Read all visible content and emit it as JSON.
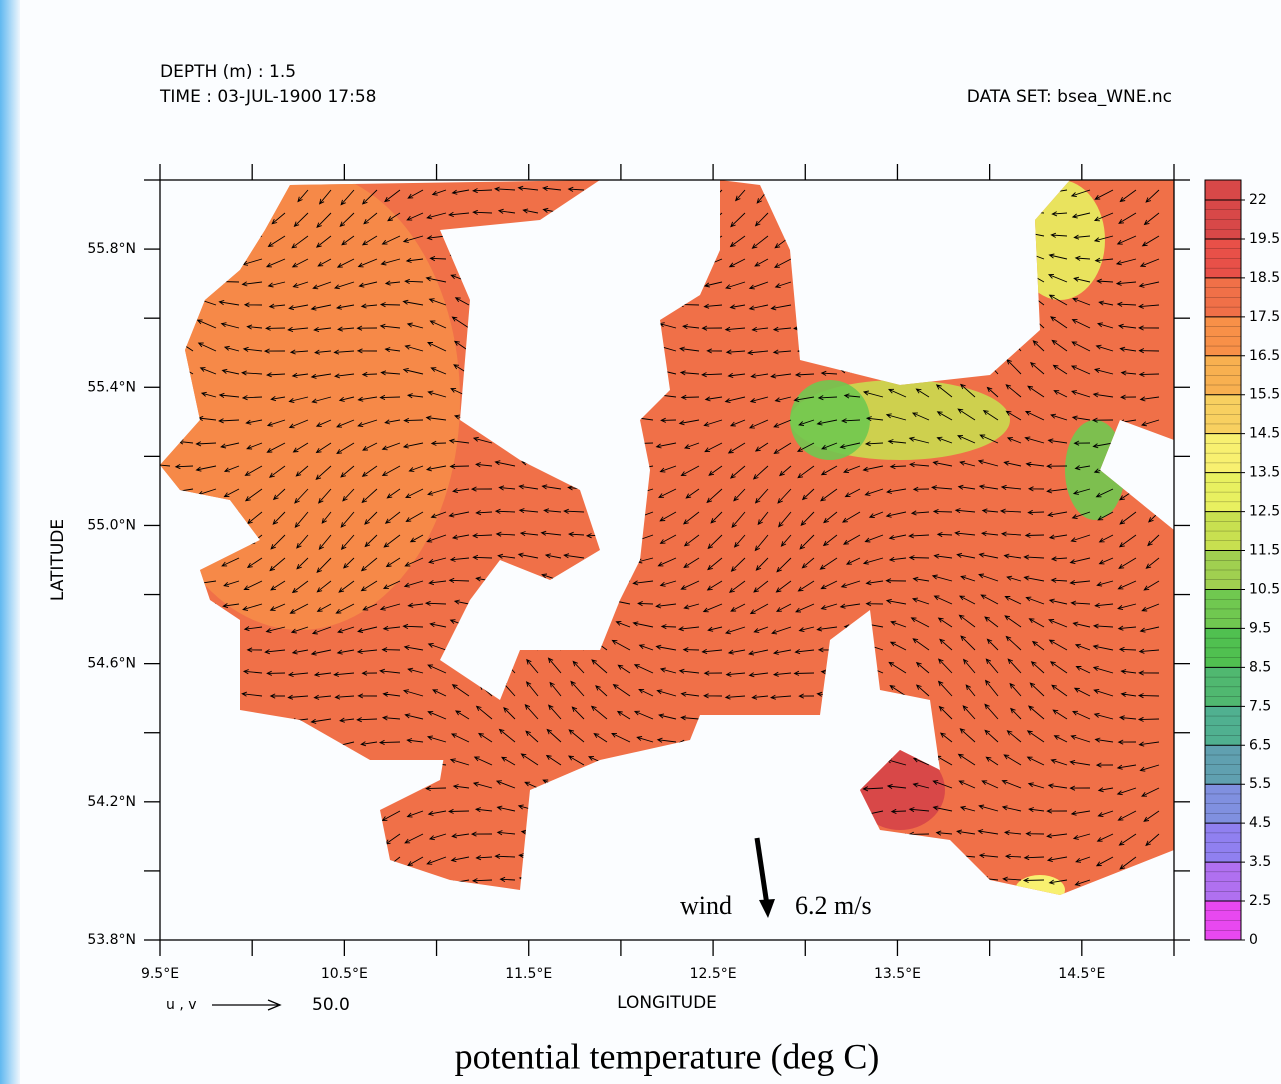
{
  "chart_data": {
    "type": "map",
    "header": {
      "depth": "DEPTH (m) : 1.5",
      "time": "TIME : 03-JUL-1900 17:58",
      "dataset": "DATA SET: bsea_WNE.nc"
    },
    "title": "potential temperature (deg C)",
    "xlabel": "LONGITUDE",
    "ylabel": "LATITUDE",
    "xlim": [
      9.5,
      15.0
    ],
    "ylim": [
      53.8,
      56.0
    ],
    "xticks": [
      {
        "value": 9.5,
        "label": "9.5°E"
      },
      {
        "value": 10.5,
        "label": "10.5°E"
      },
      {
        "value": 11.5,
        "label": "11.5°E"
      },
      {
        "value": 12.5,
        "label": "12.5°E"
      },
      {
        "value": 13.5,
        "label": "13.5°E"
      },
      {
        "value": 14.5,
        "label": "14.5°E"
      }
    ],
    "xminor": [
      10,
      11,
      12,
      13,
      14,
      15
    ],
    "yticks": [
      {
        "value": 53.8,
        "label": "53.8°N"
      },
      {
        "value": 54.2,
        "label": "54.2°N"
      },
      {
        "value": 54.6,
        "label": "54.6°N"
      },
      {
        "value": 55.0,
        "label": "55.0°N"
      },
      {
        "value": 55.4,
        "label": "55.4°N"
      },
      {
        "value": 55.8,
        "label": "55.8°N"
      }
    ],
    "yminor": [
      54.0,
      54.4,
      54.8,
      55.2,
      55.6,
      56.0
    ],
    "vector_key": {
      "label": "u , v",
      "value": "50.0"
    },
    "wind": {
      "label": "wind",
      "speed": "6.2 m/s"
    },
    "colorbar": {
      "levels": [
        0,
        2.5,
        3.5,
        4.5,
        5.5,
        6.5,
        7.5,
        8.5,
        9.5,
        10.5,
        11.5,
        12.5,
        13.5,
        14.5,
        15.5,
        16.5,
        17.5,
        18.5,
        19.5,
        22
      ],
      "colors": [
        "#e848f0",
        "#b070f0",
        "#9080f0",
        "#8090e0",
        "#60a0b0",
        "#50b090",
        "#50b870",
        "#50c050",
        "#70c850",
        "#a0d050",
        "#c8e050",
        "#e8f060",
        "#f8f070",
        "#f8d060",
        "#f8b050",
        "#f89048",
        "#f07048",
        "#e85048",
        "#d84848"
      ]
    }
  }
}
